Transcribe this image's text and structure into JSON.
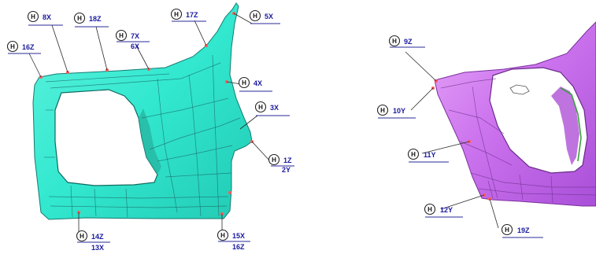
{
  "symbol": "H",
  "colors": {
    "left_part": "#32e8cf",
    "right_part": "#cc73ee",
    "label_text": "#1a1aa0",
    "marker": "#ff5a5a"
  },
  "left_view": {
    "labels": [
      "8X",
      "18Z",
      "17Z",
      "5X",
      "16Z",
      "7X",
      "6X",
      "4X",
      "3X",
      "1Z",
      "2Y",
      "14Z",
      "13X",
      "15X",
      "16Z"
    ]
  },
  "right_view": {
    "labels": [
      "9Z",
      "10Y",
      "11Y",
      "12Y",
      "19Z"
    ]
  }
}
